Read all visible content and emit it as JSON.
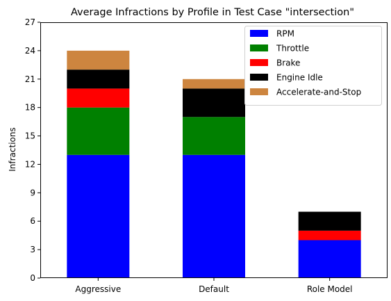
{
  "chart_data": {
    "type": "bar",
    "stacked": true,
    "title": "Average Infractions by Profile in Test Case \"intersection\"",
    "xlabel": "",
    "ylabel": "Infractions",
    "categories": [
      "Aggressive",
      "Default",
      "Role Model"
    ],
    "ylim": [
      0,
      27
    ],
    "yticks": [
      0,
      3,
      6,
      9,
      12,
      15,
      18,
      21,
      24,
      27
    ],
    "grid": false,
    "legend": "top-right",
    "series": [
      {
        "name": "RPM",
        "color": "#0000ff",
        "values": [
          13,
          13,
          4
        ]
      },
      {
        "name": "Throttle",
        "color": "#008000",
        "values": [
          5,
          4,
          0
        ]
      },
      {
        "name": "Brake",
        "color": "#ff0000",
        "values": [
          2,
          0,
          1
        ]
      },
      {
        "name": "Engine Idle",
        "color": "#000000",
        "values": [
          2,
          3,
          2
        ]
      },
      {
        "name": "Accelerate-and-Stop",
        "color": "#cd853f",
        "values": [
          2,
          1,
          0
        ]
      }
    ]
  }
}
